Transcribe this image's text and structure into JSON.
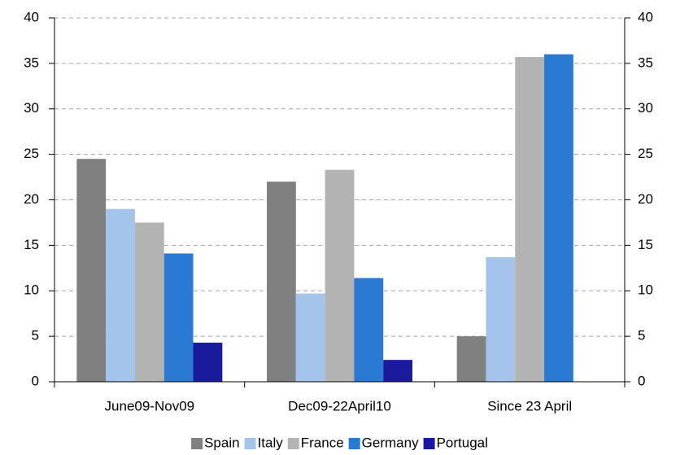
{
  "chart_data": {
    "type": "bar",
    "categories": [
      "June09-Nov09",
      "Dec09-22April10",
      "Since 23 April"
    ],
    "series": [
      {
        "name": "Spain",
        "color": "#808080",
        "values": [
          24.5,
          22,
          5
        ]
      },
      {
        "name": "Italy",
        "color": "#a4c4ec",
        "values": [
          19,
          9.7,
          13.7
        ]
      },
      {
        "name": "France",
        "color": "#b3b3b3",
        "values": [
          17.5,
          23.3,
          35.7
        ]
      },
      {
        "name": "Germany",
        "color": "#2a7ad4",
        "values": [
          14.1,
          11.4,
          36
        ]
      },
      {
        "name": "Portugal",
        "color": "#1a1a9c",
        "values": [
          4.3,
          2.4,
          null
        ]
      }
    ],
    "ylim": [
      0,
      40
    ],
    "yticks": [
      0,
      5,
      10,
      15,
      20,
      25,
      30,
      35,
      40
    ],
    "y2lim": [
      0,
      40
    ],
    "y2ticks": [
      0,
      5,
      10,
      15,
      20,
      25,
      30,
      35,
      40
    ],
    "grid": true,
    "legend": "bottom"
  }
}
